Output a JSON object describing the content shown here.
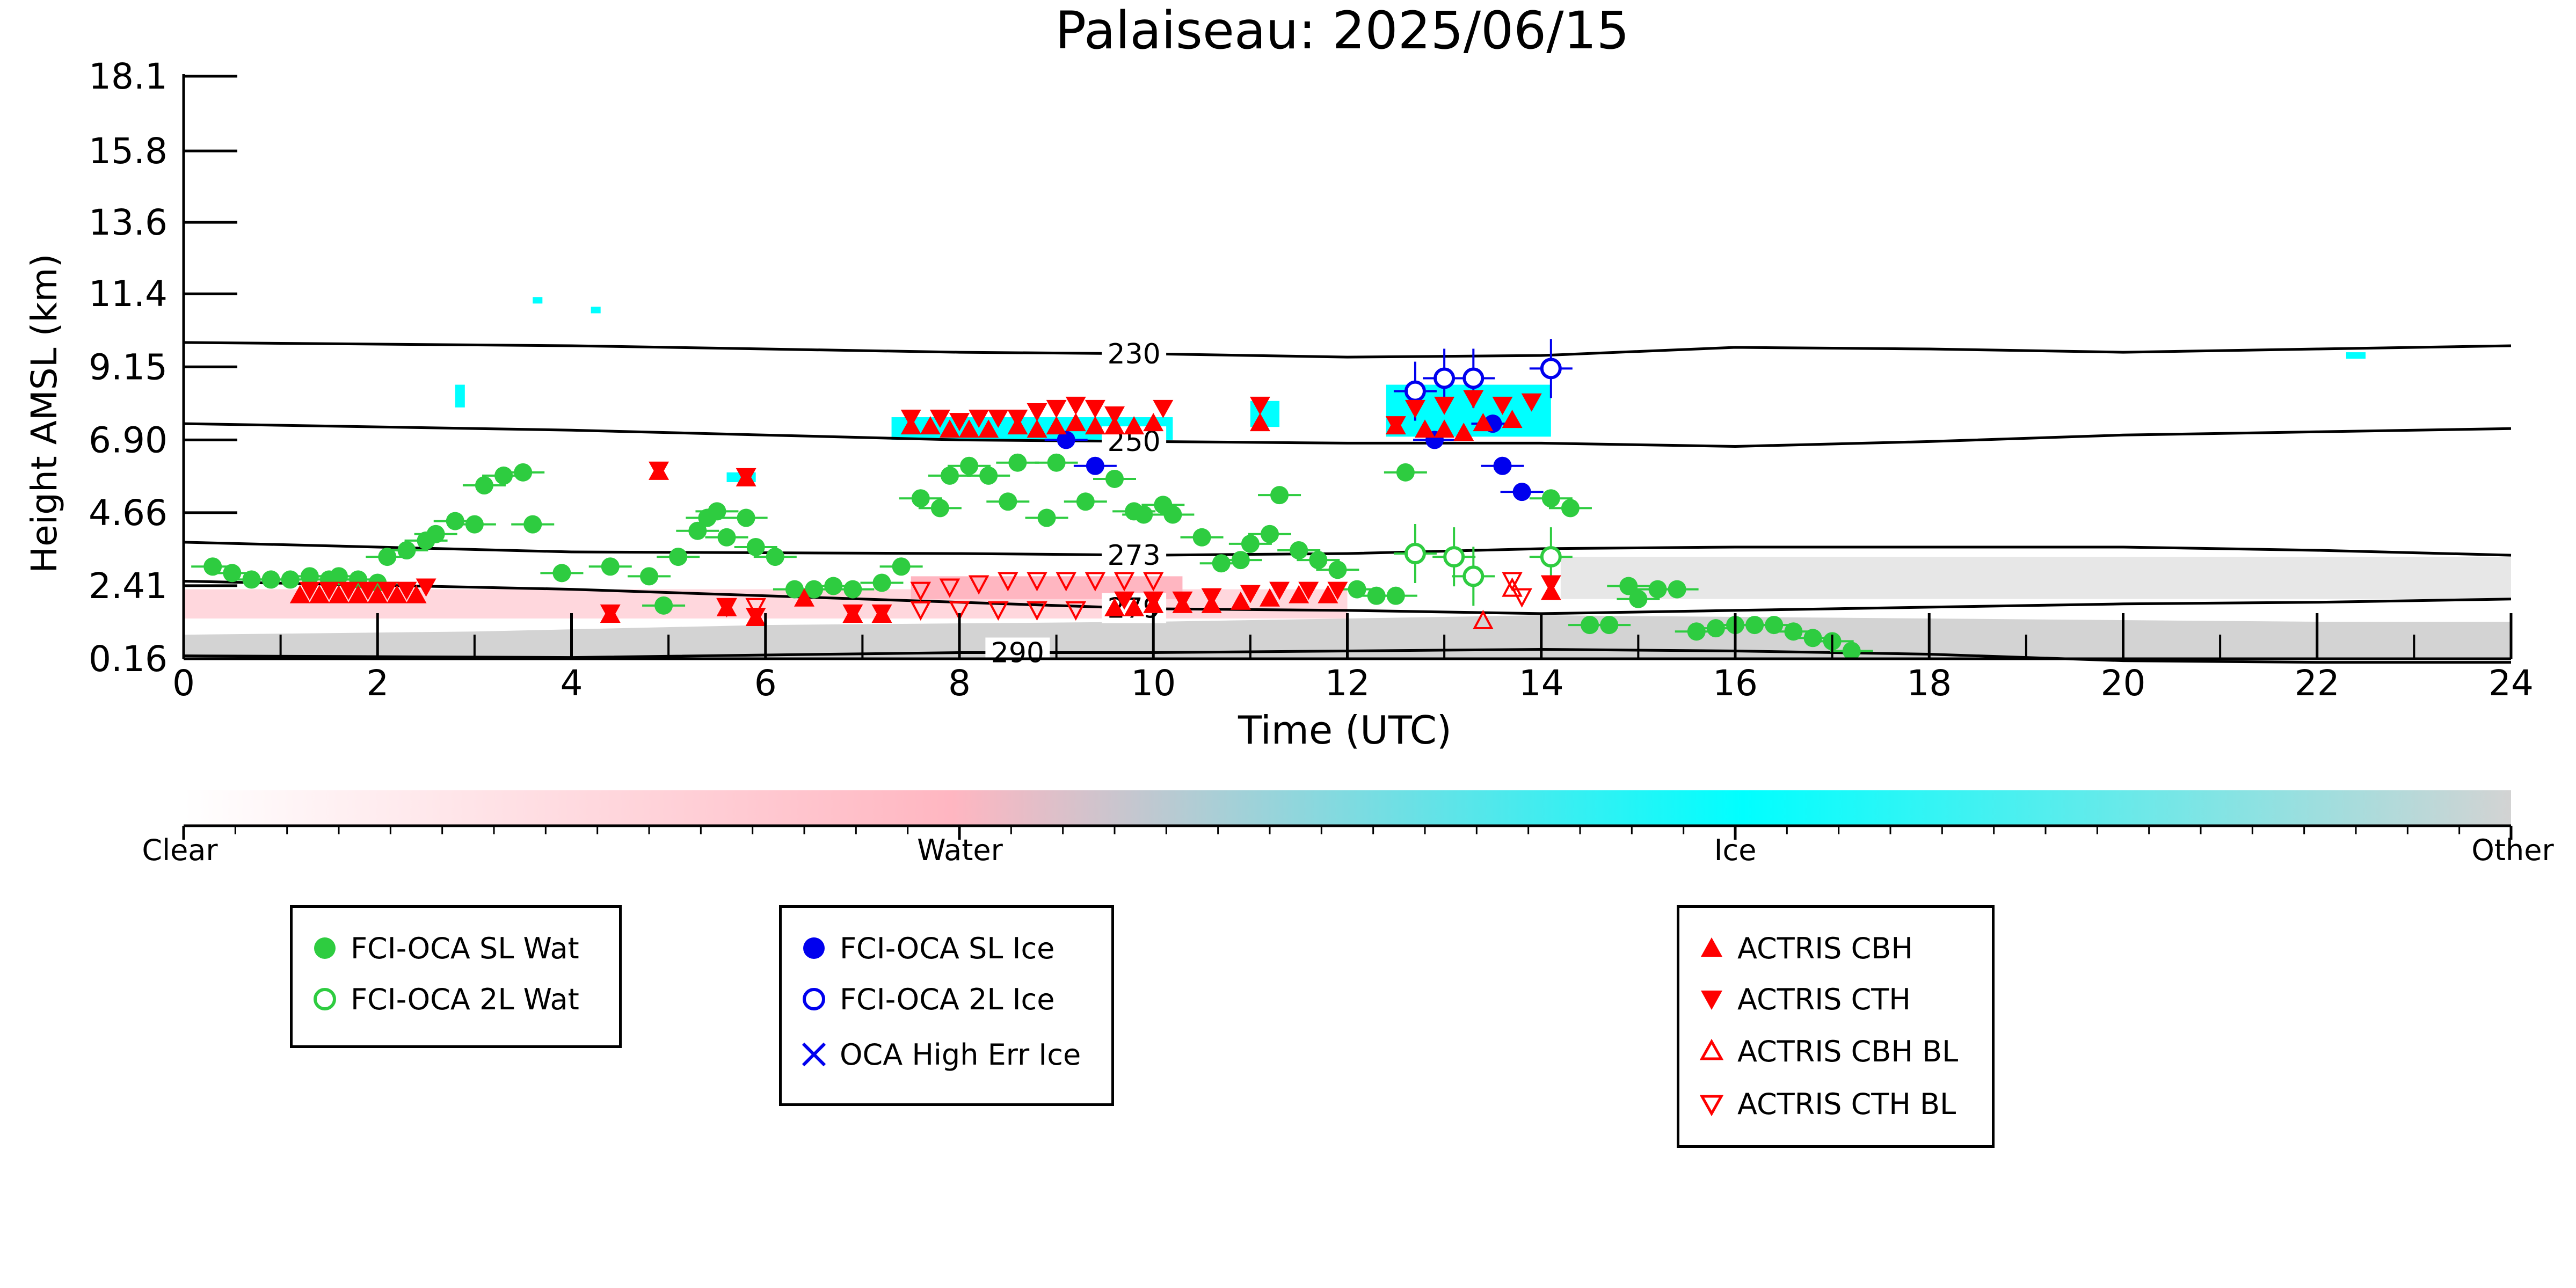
{
  "chart_data": {
    "type": "scatter",
    "title": "Palaiseau: 2025/06/15",
    "xlabel": "Time (UTC)",
    "ylabel": "Height AMSL (km)",
    "xlim": [
      0,
      24
    ],
    "xticks": [
      "0",
      "2",
      "4",
      "6",
      "8",
      "10",
      "12",
      "14",
      "16",
      "18",
      "20",
      "22",
      "24"
    ],
    "yticks": [
      "0.16",
      "2.41",
      "4.66",
      "6.90",
      "9.15",
      "11.4",
      "13.6",
      "15.8",
      "18.1"
    ],
    "colorbar": {
      "labels": [
        "Clear",
        "Water",
        "Ice",
        "Other"
      ],
      "colors": [
        "#ffffff",
        "#ffb6c1",
        "#00ffff",
        "#d3d3d3"
      ]
    },
    "isotherms": [
      {
        "label": "230",
        "x": [
          0,
          4,
          8,
          10,
          12,
          14,
          16,
          18,
          20,
          22,
          24
        ],
        "y": [
          9.9,
          9.8,
          9.6,
          9.55,
          9.45,
          9.5,
          9.75,
          9.7,
          9.6,
          9.7,
          9.8
        ]
      },
      {
        "label": "250",
        "x": [
          0,
          4,
          8,
          10,
          12,
          14,
          16,
          18,
          20,
          22,
          24
        ],
        "y": [
          7.4,
          7.2,
          6.9,
          6.85,
          6.8,
          6.8,
          6.7,
          6.85,
          7.05,
          7.15,
          7.25
        ]
      },
      {
        "label": "273",
        "x": [
          0,
          4,
          8,
          10,
          12,
          14,
          16,
          18,
          20,
          22,
          24
        ],
        "y": [
          3.75,
          3.45,
          3.4,
          3.35,
          3.4,
          3.55,
          3.6,
          3.6,
          3.6,
          3.5,
          3.35
        ]
      },
      {
        "label": "279",
        "x": [
          0,
          4,
          8,
          10,
          12,
          14,
          16,
          18,
          20,
          22,
          24
        ],
        "y": [
          2.55,
          2.3,
          1.9,
          1.7,
          1.65,
          1.55,
          1.65,
          1.75,
          1.85,
          1.9,
          2.0
        ]
      },
      {
        "label": "290",
        "x": [
          0,
          4,
          8,
          10,
          12,
          14,
          16,
          18,
          20,
          22,
          24
        ],
        "y": [
          0.25,
          0.2,
          0.35,
          0.35,
          0.4,
          0.45,
          0.4,
          0.3,
          0.1,
          0.05,
          0.05
        ]
      }
    ],
    "series": [
      {
        "name": "FCI-OCA SL Wat",
        "color": "#2ecc40",
        "points": [
          [
            0.3,
            3.0
          ],
          [
            0.5,
            2.8
          ],
          [
            0.7,
            2.6
          ],
          [
            0.9,
            2.6
          ],
          [
            1.1,
            2.6
          ],
          [
            1.3,
            2.7
          ],
          [
            1.5,
            2.6
          ],
          [
            1.6,
            2.7
          ],
          [
            1.8,
            2.6
          ],
          [
            2.0,
            2.5
          ],
          [
            2.1,
            3.3
          ],
          [
            2.3,
            3.5
          ],
          [
            2.5,
            3.8
          ],
          [
            2.6,
            4.0
          ],
          [
            2.8,
            4.4
          ],
          [
            3.0,
            4.3
          ],
          [
            3.1,
            5.5
          ],
          [
            3.3,
            5.8
          ],
          [
            3.5,
            5.9
          ],
          [
            3.6,
            4.3
          ],
          [
            3.9,
            2.8
          ],
          [
            4.4,
            3.0
          ],
          [
            4.8,
            2.7
          ],
          [
            4.95,
            1.8
          ],
          [
            5.1,
            3.3
          ],
          [
            5.3,
            4.1
          ],
          [
            5.4,
            4.5
          ],
          [
            5.5,
            4.7
          ],
          [
            5.6,
            3.9
          ],
          [
            5.8,
            4.5
          ],
          [
            5.9,
            3.6
          ],
          [
            6.1,
            3.3
          ],
          [
            6.3,
            2.3
          ],
          [
            6.5,
            2.3
          ],
          [
            6.7,
            2.4
          ],
          [
            6.9,
            2.3
          ],
          [
            7.2,
            2.5
          ],
          [
            7.4,
            3.0
          ],
          [
            7.6,
            5.1
          ],
          [
            7.8,
            4.8
          ],
          [
            7.9,
            5.8
          ],
          [
            8.1,
            6.1
          ],
          [
            8.3,
            5.8
          ],
          [
            8.5,
            5.0
          ],
          [
            8.6,
            6.2
          ],
          [
            8.9,
            4.5
          ],
          [
            9.0,
            6.2
          ],
          [
            9.3,
            5.0
          ],
          [
            9.6,
            5.7
          ],
          [
            9.8,
            4.7
          ],
          [
            9.9,
            4.6
          ],
          [
            10.1,
            4.9
          ],
          [
            10.2,
            4.6
          ],
          [
            10.5,
            3.9
          ],
          [
            10.7,
            3.1
          ],
          [
            10.9,
            3.2
          ],
          [
            11.0,
            3.7
          ],
          [
            11.2,
            4.0
          ],
          [
            11.3,
            5.2
          ],
          [
            11.5,
            3.5
          ],
          [
            11.7,
            3.2
          ],
          [
            11.9,
            2.9
          ],
          [
            12.1,
            2.3
          ],
          [
            12.3,
            2.1
          ],
          [
            12.5,
            2.1
          ],
          [
            12.6,
            5.9
          ],
          [
            14.1,
            5.1
          ],
          [
            14.3,
            4.8
          ],
          [
            14.5,
            1.2
          ],
          [
            14.7,
            1.2
          ],
          [
            14.9,
            2.4
          ],
          [
            15.0,
            2.0
          ],
          [
            15.2,
            2.3
          ],
          [
            15.4,
            2.3
          ],
          [
            15.6,
            1.0
          ],
          [
            15.8,
            1.1
          ],
          [
            16.0,
            1.2
          ],
          [
            16.2,
            1.2
          ],
          [
            16.4,
            1.2
          ],
          [
            16.6,
            1.0
          ],
          [
            16.8,
            0.8
          ],
          [
            17.0,
            0.7
          ],
          [
            17.2,
            0.4
          ]
        ]
      },
      {
        "name": "FCI-OCA 2L Wat",
        "color": "#2ecc40",
        "points": [
          [
            12.7,
            3.4
          ],
          [
            13.1,
            3.3
          ],
          [
            13.3,
            2.7
          ],
          [
            14.1,
            3.3
          ]
        ]
      },
      {
        "name": "FCI-OCA SL Ice",
        "color": "#0000ee",
        "points": [
          [
            9.1,
            6.9
          ],
          [
            9.4,
            6.1
          ],
          [
            12.9,
            6.9
          ],
          [
            13.5,
            7.4
          ],
          [
            13.6,
            6.1
          ],
          [
            13.8,
            5.3
          ]
        ]
      },
      {
        "name": "FCI-OCA 2L Ice",
        "color": "#0000ee",
        "points": [
          [
            12.7,
            8.4
          ],
          [
            13.0,
            8.8
          ],
          [
            13.3,
            8.8
          ],
          [
            14.1,
            9.1
          ]
        ]
      },
      {
        "name": "OCA High Err Ice",
        "color": "#0000ee",
        "points": []
      },
      {
        "name": "ACTRIS CBH",
        "color": "#ff0000",
        "points": [
          [
            1.2,
            2.1
          ],
          [
            1.4,
            2.1
          ],
          [
            1.6,
            2.1
          ],
          [
            1.8,
            2.1
          ],
          [
            2.0,
            2.1
          ],
          [
            2.2,
            2.1
          ],
          [
            2.4,
            2.1
          ],
          [
            4.4,
            1.5
          ],
          [
            4.9,
            5.9
          ],
          [
            5.6,
            1.7
          ],
          [
            5.8,
            5.7
          ],
          [
            5.9,
            1.4
          ],
          [
            6.4,
            2.0
          ],
          [
            6.9,
            1.5
          ],
          [
            7.2,
            1.5
          ],
          [
            7.5,
            7.3
          ],
          [
            7.7,
            7.3
          ],
          [
            7.9,
            7.2
          ],
          [
            8.1,
            7.2
          ],
          [
            8.3,
            7.2
          ],
          [
            8.6,
            7.3
          ],
          [
            8.8,
            7.2
          ],
          [
            9.0,
            7.3
          ],
          [
            9.2,
            7.4
          ],
          [
            9.4,
            7.3
          ],
          [
            9.6,
            7.3
          ],
          [
            9.8,
            7.3
          ],
          [
            10.0,
            7.4
          ],
          [
            9.6,
            1.7
          ],
          [
            9.8,
            1.7
          ],
          [
            10.0,
            1.8
          ],
          [
            10.3,
            1.8
          ],
          [
            10.6,
            1.8
          ],
          [
            10.9,
            1.9
          ],
          [
            11.1,
            7.4
          ],
          [
            11.2,
            2.0
          ],
          [
            11.5,
            2.1
          ],
          [
            11.8,
            2.1
          ],
          [
            12.5,
            7.3
          ],
          [
            12.8,
            7.2
          ],
          [
            13.0,
            7.2
          ],
          [
            13.2,
            7.1
          ],
          [
            13.4,
            7.4
          ],
          [
            13.7,
            7.5
          ],
          [
            14.1,
            2.2
          ]
        ]
      },
      {
        "name": "ACTRIS CTH",
        "color": "#ff0000",
        "points": [
          [
            1.3,
            2.3
          ],
          [
            1.5,
            2.3
          ],
          [
            1.7,
            2.3
          ],
          [
            1.9,
            2.3
          ],
          [
            2.1,
            2.3
          ],
          [
            2.3,
            2.3
          ],
          [
            2.5,
            2.4
          ],
          [
            4.4,
            1.6
          ],
          [
            4.9,
            6.0
          ],
          [
            5.6,
            1.8
          ],
          [
            5.8,
            5.8
          ],
          [
            5.9,
            1.5
          ],
          [
            6.9,
            1.6
          ],
          [
            7.2,
            1.6
          ],
          [
            7.5,
            7.6
          ],
          [
            7.8,
            7.6
          ],
          [
            8.0,
            7.5
          ],
          [
            8.2,
            7.6
          ],
          [
            8.4,
            7.6
          ],
          [
            8.6,
            7.6
          ],
          [
            8.8,
            7.8
          ],
          [
            9.0,
            7.9
          ],
          [
            9.2,
            8.0
          ],
          [
            9.4,
            7.9
          ],
          [
            9.6,
            7.7
          ],
          [
            10.1,
            7.9
          ],
          [
            9.7,
            2.0
          ],
          [
            10.0,
            2.0
          ],
          [
            10.3,
            2.0
          ],
          [
            10.6,
            2.1
          ],
          [
            11.0,
            2.2
          ],
          [
            11.1,
            8.0
          ],
          [
            11.3,
            2.3
          ],
          [
            11.6,
            2.3
          ],
          [
            11.9,
            2.3
          ],
          [
            12.5,
            7.4
          ],
          [
            12.7,
            7.9
          ],
          [
            13.0,
            8.0
          ],
          [
            13.3,
            8.2
          ],
          [
            13.6,
            8.0
          ],
          [
            13.9,
            8.1
          ],
          [
            14.1,
            2.5
          ]
        ]
      },
      {
        "name": "ACTRIS CBH BL",
        "color": "#ff0000",
        "points": [
          [
            13.4,
            1.3
          ],
          [
            13.7,
            2.3
          ]
        ]
      },
      {
        "name": "ACTRIS CTH BL",
        "color": "#ff0000",
        "points": [
          [
            7.6,
            2.3
          ],
          [
            7.9,
            2.4
          ],
          [
            8.2,
            2.5
          ],
          [
            8.5,
            2.6
          ],
          [
            8.8,
            2.6
          ],
          [
            9.1,
            2.6
          ],
          [
            9.4,
            2.6
          ],
          [
            9.7,
            2.6
          ],
          [
            10.0,
            2.6
          ],
          [
            7.6,
            1.7
          ],
          [
            8.0,
            1.7
          ],
          [
            8.4,
            1.7
          ],
          [
            8.8,
            1.7
          ],
          [
            9.2,
            1.7
          ],
          [
            5.6,
            1.8
          ],
          [
            5.9,
            1.8
          ],
          [
            13.7,
            2.6
          ],
          [
            13.8,
            2.1
          ]
        ]
      }
    ]
  }
}
